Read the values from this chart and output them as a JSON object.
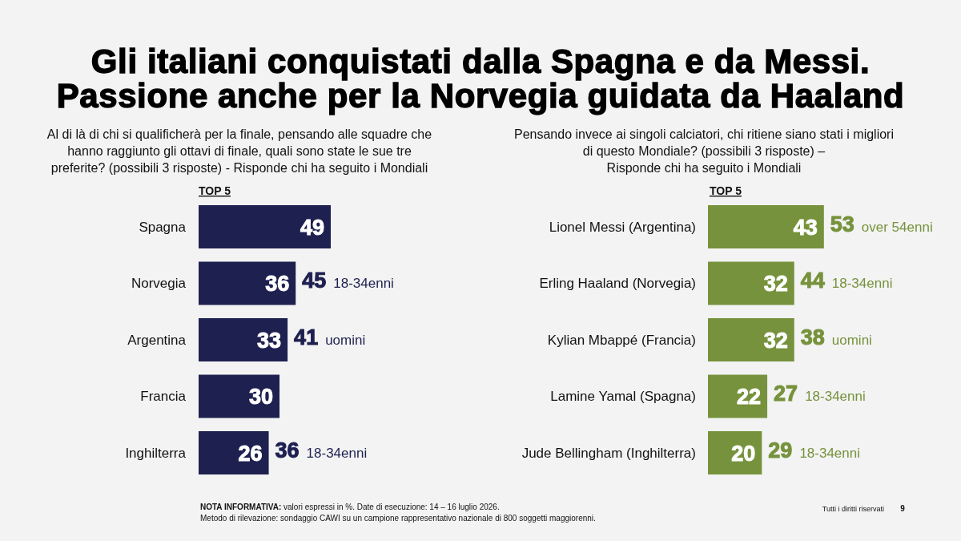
{
  "chart_data": [
    {
      "type": "bar",
      "orientation": "horizontal",
      "title": "Gli italiani conquistati dalla Spagna e da Messi.\nPassione anche per la Norvegia guidata da Haaland",
      "subtitle": "Al di là di chi si qualificherà per la finale, pensando alle squadre che\nhanno raggiunto gli ottavi di finale, quali sono state le sue tre\npreferite? (possibili 3 risposte) - Risponde chi ha seguito i Mondiali",
      "categories": [
        "Spagna",
        "Norvegia",
        "Argentina",
        "Francia",
        "Inghilterra"
      ],
      "values": [
        49,
        36,
        33,
        30,
        26
      ],
      "color": "#1e2050",
      "data_labels": true,
      "annotations": [
        "TOP 5",
        {
          "text": "45 18-34enni",
          "x": 36,
          "y": "Norvegia"
        },
        {
          "text": "41 uomini",
          "x": 33,
          "y": "Argentina"
        },
        {
          "text": "36 18-34enni",
          "x": 26,
          "y": "Inghilterra"
        },
        "NOTA INFORMATIVA: valori espressi in %. Date di esecuzione: 14 – 16 luglio 2026.",
        "Metodo di rilevazione: sondaggio CAWI su un campione rappresentativo nazionale di 800 soggetti maggiorenni."
      ]
    },
    {
      "type": "bar",
      "orientation": "horizontal",
      "subtitle": "Pensando invece ai singoli calciatori, chi ritiene siano stati i migliori\ndi questo Mondiale? (possibili 3 risposte) –\nRisponde chi ha seguito i Mondiali",
      "categories": [
        "Lionel Messi (Argentina)",
        "Erling Haaland (Norvegia)",
        "Kylian Mbappé (Francia)",
        "Lamine Yamal (Spagna)",
        "Jude Bellingham (Inghilterra)"
      ],
      "values": [
        43,
        32,
        32,
        22,
        20
      ],
      "color": "#76923c",
      "data_labels": true,
      "annotations": [
        "TOP 5",
        {
          "text": "53 over 54enni",
          "x": 43,
          "y": "Lionel Messi (Argentina)"
        },
        {
          "text": "44 18-34enni",
          "x": 32,
          "y": "Erling Haaland (Norvegia)"
        },
        {
          "text": "38 uomini",
          "x": 32,
          "y": "Kylian Mbappé (Francia)"
        },
        {
          "text": "27 18-34enni",
          "x": 22,
          "y": "Lamine Yamal (Spagna)"
        },
        {
          "text": "29 18-34enni",
          "x": 20,
          "y": "Jude Bellingham (Inghilterra)"
        },
        "Tutti i diritti riservati",
        "9"
      ]
    }
  ]
}
